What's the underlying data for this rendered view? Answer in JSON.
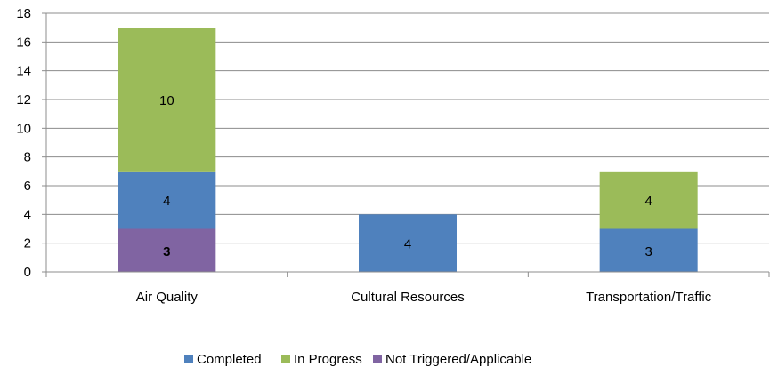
{
  "chart_data": {
    "type": "bar",
    "stacked": true,
    "categories": [
      "Air Quality",
      "Cultural Resources",
      "Transportation/Traffic"
    ],
    "series": [
      {
        "name": "Not Triggered/Applicable",
        "color": "#8064a2",
        "values": [
          3,
          0,
          0
        ],
        "labels": [
          "3",
          "",
          ""
        ],
        "label_bold": true
      },
      {
        "name": "Completed",
        "color": "#4f81bd",
        "values": [
          4,
          4,
          3
        ],
        "labels": [
          "4",
          "4",
          "3"
        ],
        "label_bold": false
      },
      {
        "name": "In Progress",
        "color": "#9bbb59",
        "values": [
          10,
          0,
          4
        ],
        "labels": [
          "10",
          "",
          "4"
        ],
        "label_bold": false
      }
    ],
    "legend_order": [
      "Completed",
      "In Progress",
      "Not Triggered/Applicable"
    ],
    "ylim": [
      0,
      18
    ],
    "yticks": [
      0,
      2,
      4,
      6,
      8,
      10,
      12,
      14,
      16,
      18
    ],
    "grid": true,
    "legend_position": "bottom",
    "title": "",
    "xlabel": "",
    "ylabel": ""
  }
}
